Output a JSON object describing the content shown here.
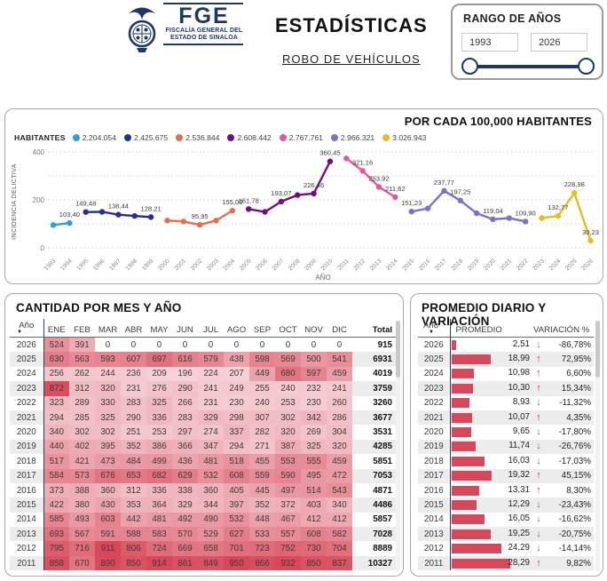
{
  "header": {
    "logo": {
      "acronym": "FGE",
      "org_line1": "FISCALÍA GENERAL DEL",
      "org_line2": "ESTADO DE SINALOA"
    },
    "title": "ESTADÍSTICAS",
    "subtitle": "ROBO DE VEHÍCULOS"
  },
  "year_range": {
    "title": "RANGO DE AÑOS",
    "min": "1993",
    "max": "2026"
  },
  "chart_data": {
    "type": "line",
    "title": "POR CADA 100,000 HABITANTES",
    "legend_label": "HABITANTES",
    "xlabel": "AÑO",
    "ylabel": "INCIDENCIA DELICTIVA",
    "ylim": [
      0,
      400
    ],
    "yticks": [
      0,
      200,
      400
    ],
    "gridline_step": 100,
    "grid": true,
    "legend_position": "top-left",
    "x_years": [
      1993,
      1994,
      1995,
      1996,
      1997,
      1998,
      1999,
      2000,
      2001,
      2002,
      2003,
      2004,
      2005,
      2006,
      2007,
      2008,
      2009,
      2010,
      2011,
      2012,
      2013,
      2014,
      2015,
      2016,
      2017,
      2018,
      2019,
      2020,
      2021,
      2022,
      2023,
      2024,
      2025,
      2026
    ],
    "series": [
      {
        "name": "2.204.054",
        "color": "#2D9FDB",
        "years": [
          1993,
          1994
        ],
        "values": [
          95,
          103.4
        ],
        "labels": [
          null,
          "103,40"
        ]
      },
      {
        "name": "2.425.675",
        "color": "#27318B",
        "years": [
          1995,
          1996,
          1997,
          1998,
          1999
        ],
        "values": [
          149.48,
          150,
          138.44,
          133,
          128.21
        ],
        "labels": [
          "149,48",
          null,
          "138,44",
          null,
          "128,21"
        ]
      },
      {
        "name": "2.536.844",
        "color": "#E0714B",
        "years": [
          2000,
          2001,
          2002,
          2003,
          2004
        ],
        "values": [
          114,
          110,
          95.95,
          114,
          155.0
        ],
        "labels": [
          null,
          null,
          "95,95",
          null,
          "155,00"
        ]
      },
      {
        "name": "2.608.442",
        "color": "#750D80",
        "years": [
          2005,
          2006,
          2007,
          2008,
          2009,
          2010
        ],
        "values": [
          161.78,
          150,
          193.07,
          220,
          226.46,
          360.45
        ],
        "labels": [
          "161,78",
          null,
          "193,07",
          null,
          "226,46",
          "360,45"
        ]
      },
      {
        "name": "2.767.761",
        "color": "#E356A3",
        "years": [
          2011,
          2012,
          2013,
          2014
        ],
        "values": [
          373.1,
          321.16,
          253.92,
          211.62
        ],
        "labels": [
          null,
          "321,16",
          "253,92",
          "211,62"
        ]
      },
      {
        "name": "2.966.321",
        "color": "#7E71C7",
        "years": [
          2015,
          2016,
          2017,
          2018,
          2019,
          2020,
          2021,
          2022
        ],
        "values": [
          151.23,
          164.2,
          237.77,
          197.25,
          144.4,
          119.04,
          124,
          109.9
        ],
        "labels": [
          "151,23",
          null,
          "237,77",
          "197,25",
          null,
          "119,04",
          null,
          "109,90"
        ]
      },
      {
        "name": "3.026.943",
        "color": "#E2BD23",
        "years": [
          2023,
          2024,
          2025,
          2026
        ],
        "values": [
          124.2,
          132.77,
          228.98,
          30.23
        ],
        "labels": [
          null,
          "132,77",
          "228,98",
          "30,23"
        ]
      }
    ]
  },
  "monthly_table": {
    "title": "CANTIDAD POR MES Y AÑO",
    "columns": [
      "Año",
      "ENE",
      "FEB",
      "MAR",
      "ABR",
      "MAY",
      "JUN",
      "JUL",
      "AGO",
      "SEP",
      "OCT",
      "NOV",
      "DIC",
      "Total"
    ],
    "heatmap_max": 950,
    "rows": [
      {
        "year": "2026",
        "months": [
          524,
          391,
          0,
          0,
          0,
          0,
          0,
          0,
          0,
          0,
          0,
          0
        ],
        "total": "915"
      },
      {
        "year": "2025",
        "months": [
          630,
          563,
          593,
          607,
          697,
          616,
          579,
          438,
          598,
          569,
          500,
          541
        ],
        "total": "6931"
      },
      {
        "year": "2024",
        "months": [
          256,
          262,
          244,
          236,
          209,
          196,
          224,
          207,
          449,
          680,
          597,
          459
        ],
        "total": "4019"
      },
      {
        "year": "2023",
        "months": [
          872,
          312,
          320,
          231,
          276,
          290,
          241,
          249,
          255,
          240,
          232,
          241
        ],
        "total": "3759"
      },
      {
        "year": "2022",
        "months": [
          323,
          289,
          330,
          283,
          325,
          266,
          231,
          230,
          240,
          253,
          230,
          260
        ],
        "total": "3260"
      },
      {
        "year": "2021",
        "months": [
          294,
          285,
          325,
          290,
          336,
          283,
          329,
          298,
          307,
          302,
          342,
          286
        ],
        "total": "3677"
      },
      {
        "year": "2020",
        "months": [
          340,
          302,
          302,
          251,
          253,
          297,
          274,
          337,
          282,
          320,
          269,
          304
        ],
        "total": "3531"
      },
      {
        "year": "2019",
        "months": [
          440,
          402,
          395,
          352,
          386,
          366,
          347,
          294,
          271,
          387,
          325,
          320
        ],
        "total": "4285"
      },
      {
        "year": "2018",
        "months": [
          517,
          421,
          473,
          484,
          499,
          436,
          481,
          518,
          455,
          553,
          555,
          459
        ],
        "total": "5851"
      },
      {
        "year": "2017",
        "months": [
          584,
          573,
          676,
          653,
          682,
          629,
          532,
          608,
          559,
          590,
          495,
          472
        ],
        "total": "7053"
      },
      {
        "year": "2016",
        "months": [
          373,
          388,
          360,
          312,
          336,
          338,
          360,
          405,
          445,
          497,
          514,
          543
        ],
        "total": "4871"
      },
      {
        "year": "2015",
        "months": [
          422,
          380,
          430,
          353,
          364,
          329,
          344,
          397,
          352,
          372,
          403,
          340
        ],
        "total": "4486"
      },
      {
        "year": "2014",
        "months": [
          585,
          493,
          603,
          442,
          481,
          492,
          490,
          532,
          448,
          467,
          412,
          412
        ],
        "total": "5857"
      },
      {
        "year": "2013",
        "months": [
          693,
          567,
          591,
          588,
          583,
          570,
          529,
          627,
          533,
          557,
          608,
          582
        ],
        "total": "7028"
      },
      {
        "year": "2012",
        "months": [
          795,
          716,
          911,
          806,
          724,
          669,
          658,
          701,
          723,
          752,
          730,
          704
        ],
        "total": "8889"
      },
      {
        "year": "2011",
        "months": [
          858,
          670,
          890,
          850,
          914,
          861,
          849,
          950,
          866,
          932,
          850,
          837
        ],
        "total": "10327"
      }
    ]
  },
  "daily_table": {
    "title": "PROMEDIO DIARIO Y VARIACIÓN",
    "columns": [
      "Año",
      "PROMEDIO",
      "VARIACIÓN %"
    ],
    "bar_max": 28.29,
    "rows": [
      {
        "year": "2026",
        "promedio": "2,51",
        "direction": "down",
        "variation": "-86,78%"
      },
      {
        "year": "2025",
        "promedio": "18,99",
        "direction": "up",
        "variation": "72,95%"
      },
      {
        "year": "2024",
        "promedio": "10,98",
        "direction": "up",
        "variation": "6,60%"
      },
      {
        "year": "2023",
        "promedio": "10,30",
        "direction": "up",
        "variation": "15,34%"
      },
      {
        "year": "2022",
        "promedio": "8,93",
        "direction": "down",
        "variation": "-11,32%"
      },
      {
        "year": "2021",
        "promedio": "10,07",
        "direction": "up",
        "variation": "4,35%"
      },
      {
        "year": "2020",
        "promedio": "9,65",
        "direction": "down",
        "variation": "-17,80%"
      },
      {
        "year": "2019",
        "promedio": "11,74",
        "direction": "down",
        "variation": "-26,76%"
      },
      {
        "year": "2018",
        "promedio": "16,03",
        "direction": "down",
        "variation": "-17,03%"
      },
      {
        "year": "2017",
        "promedio": "19,32",
        "direction": "up",
        "variation": "45,15%"
      },
      {
        "year": "2016",
        "promedio": "13,31",
        "direction": "up",
        "variation": "8,30%"
      },
      {
        "year": "2015",
        "promedio": "12,29",
        "direction": "down",
        "variation": "-23,43%"
      },
      {
        "year": "2014",
        "promedio": "16,05",
        "direction": "down",
        "variation": "-16,62%"
      },
      {
        "year": "2013",
        "promedio": "19,25",
        "direction": "down",
        "variation": "-20,75%"
      },
      {
        "year": "2012",
        "promedio": "24,29",
        "direction": "down",
        "variation": "-14,14%"
      },
      {
        "year": "2011",
        "promedio": "28,29",
        "direction": "up",
        "variation": "9,82%"
      }
    ]
  },
  "colors": {
    "brand_navy": "#1E3765",
    "heat_base_rgb": "214,58,77",
    "bar_red": "#D6495A",
    "arrow_up": "#C0392B",
    "arrow_down": "#3A8A4D",
    "stripe": "#ECECEC"
  }
}
